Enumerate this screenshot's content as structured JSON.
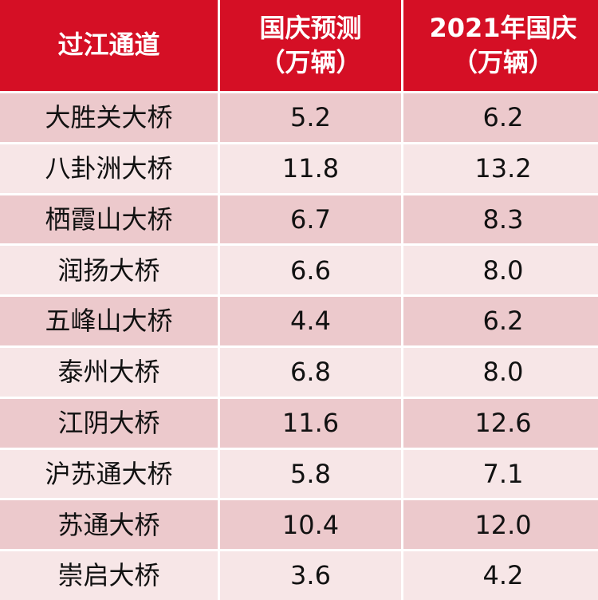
{
  "table": {
    "headers": [
      {
        "line1": "过江通道",
        "line2": ""
      },
      {
        "line1": "国庆预测",
        "line2": "（万辆）"
      },
      {
        "line1": "2021年国庆",
        "line2": "（万辆）"
      }
    ],
    "rows": [
      {
        "name": "大胜关大桥",
        "forecast": "5.2",
        "y2021": "6.2"
      },
      {
        "name": "八卦洲大桥",
        "forecast": "11.8",
        "y2021": "13.2"
      },
      {
        "name": "栖霞山大桥",
        "forecast": "6.7",
        "y2021": "8.3"
      },
      {
        "name": "润扬大桥",
        "forecast": "6.6",
        "y2021": "8.0"
      },
      {
        "name": "五峰山大桥",
        "forecast": "4.4",
        "y2021": "6.2"
      },
      {
        "name": "泰州大桥",
        "forecast": "6.8",
        "y2021": "8.0"
      },
      {
        "name": "江阴大桥",
        "forecast": "11.6",
        "y2021": "12.6"
      },
      {
        "name": "沪苏通大桥",
        "forecast": "5.8",
        "y2021": "7.1"
      },
      {
        "name": "苏通大桥",
        "forecast": "10.4",
        "y2021": "12.0"
      },
      {
        "name": "崇启大桥",
        "forecast": "3.6",
        "y2021": "4.2"
      }
    ],
    "colors": {
      "header_bg": "#d50f25",
      "header_text": "#ffffff",
      "row_dark": "#ecc9cc",
      "row_light": "#f7e6e7"
    }
  }
}
